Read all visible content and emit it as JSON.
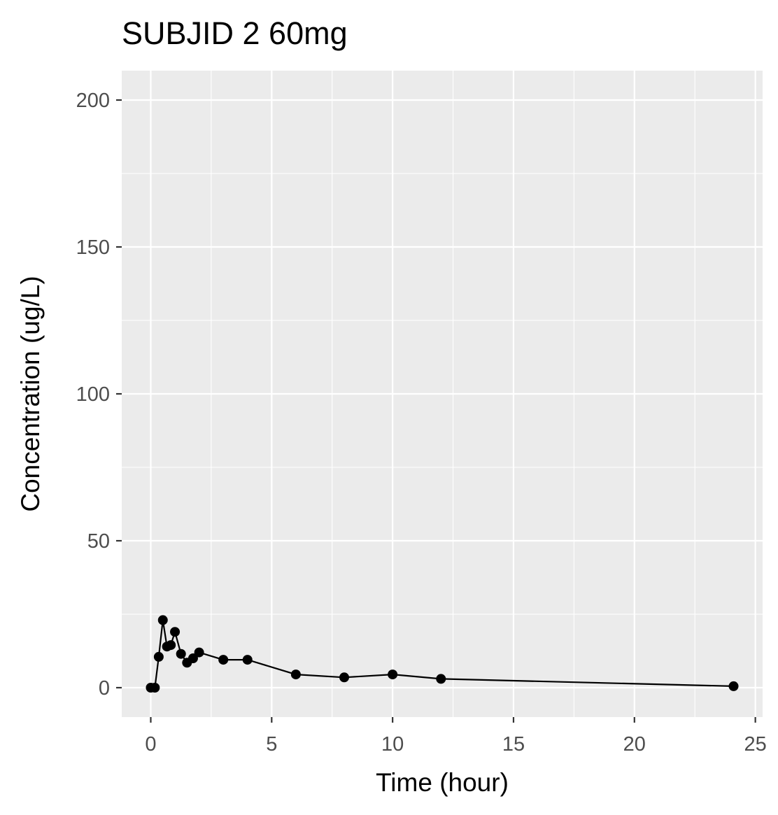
{
  "chart_data": {
    "type": "line",
    "title": "SUBJID 2 60mg",
    "xlabel": "Time (hour)",
    "ylabel": "Concentration (ug/L)",
    "xlim": [
      -1.2,
      25.3
    ],
    "ylim": [
      -10,
      210
    ],
    "x_ticks": [
      0,
      5,
      10,
      15,
      20,
      25
    ],
    "y_ticks": [
      0,
      50,
      100,
      150,
      200
    ],
    "x_tick_labels": [
      "0",
      "5",
      "10",
      "15",
      "20",
      "25"
    ],
    "y_tick_labels": [
      "0",
      "50",
      "100",
      "150",
      "200"
    ],
    "grid": true,
    "background": "#ebebeb",
    "series_color": "#000000",
    "series": [
      {
        "x": [
          0,
          0.17,
          0.33,
          0.5,
          0.67,
          0.83,
          1,
          1.25,
          1.5,
          1.75,
          2,
          3,
          4,
          6,
          8,
          10,
          12,
          24.1
        ],
        "y": [
          0,
          0,
          10.5,
          23,
          14,
          14.5,
          19,
          11.5,
          8.5,
          10,
          12,
          9.5,
          9.5,
          4.5,
          3.5,
          4.5,
          3,
          0.5
        ]
      }
    ]
  }
}
